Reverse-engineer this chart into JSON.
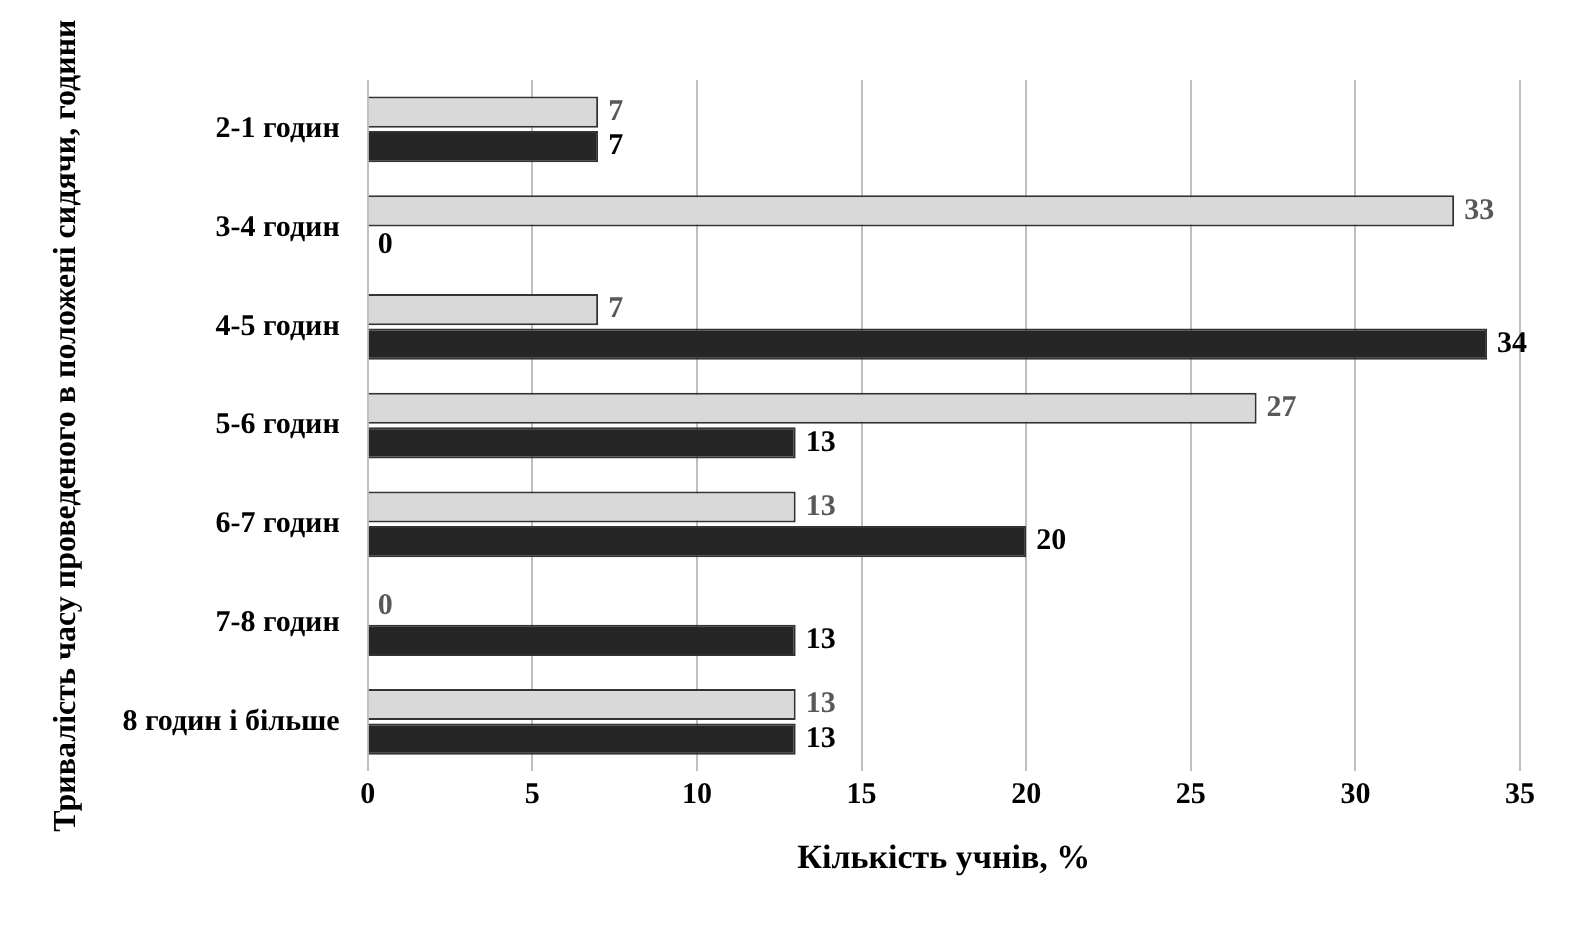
{
  "chart_data": {
    "type": "bar",
    "orientation": "horizontal",
    "ylabel": "Тривалість часу проведеного в положені сидячи, години",
    "xlabel": "Кількість учнів, %",
    "categories": [
      "2-1 годин",
      "3-4 годин",
      "4-5 годин",
      "5-6 годин",
      "6-7 годин",
      "7-8 годин",
      "8 годин і більше"
    ],
    "series": [
      {
        "color": "#d9d9d9",
        "values": [
          7,
          33,
          7,
          27,
          13,
          0,
          13
        ]
      },
      {
        "color": "#262626",
        "values": [
          7,
          0,
          34,
          13,
          20,
          13,
          13
        ]
      }
    ],
    "xlim": [
      0,
      35
    ],
    "xticks": [
      0,
      5,
      10,
      15,
      20,
      25,
      30,
      35
    ],
    "grid": "x",
    "legend": false,
    "data_labels": true
  }
}
